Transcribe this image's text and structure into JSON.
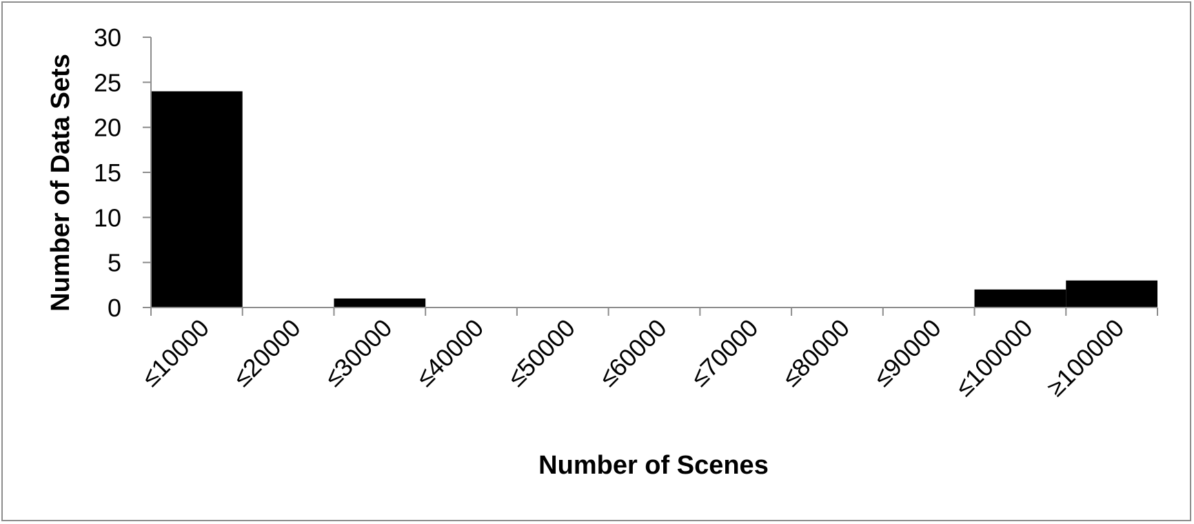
{
  "chart_data": {
    "type": "bar",
    "title": "",
    "xlabel": "Number of Scenes",
    "ylabel": "Number of Data Sets",
    "categories": [
      "≤10000",
      "≤20000",
      "≤30000",
      "≤40000",
      "≤50000",
      "≤60000",
      "≤70000",
      "≤80000",
      "≤90000",
      "≤100000",
      "≥100000"
    ],
    "values": [
      24,
      0,
      1,
      0,
      0,
      0,
      0,
      0,
      0,
      2,
      3
    ],
    "yticks": [
      0,
      5,
      10,
      15,
      20,
      25,
      30
    ],
    "ylim": [
      0,
      30
    ],
    "grid": false,
    "legend": "none",
    "bar_color": "#000000",
    "axis_color": "#8c8c8c"
  }
}
